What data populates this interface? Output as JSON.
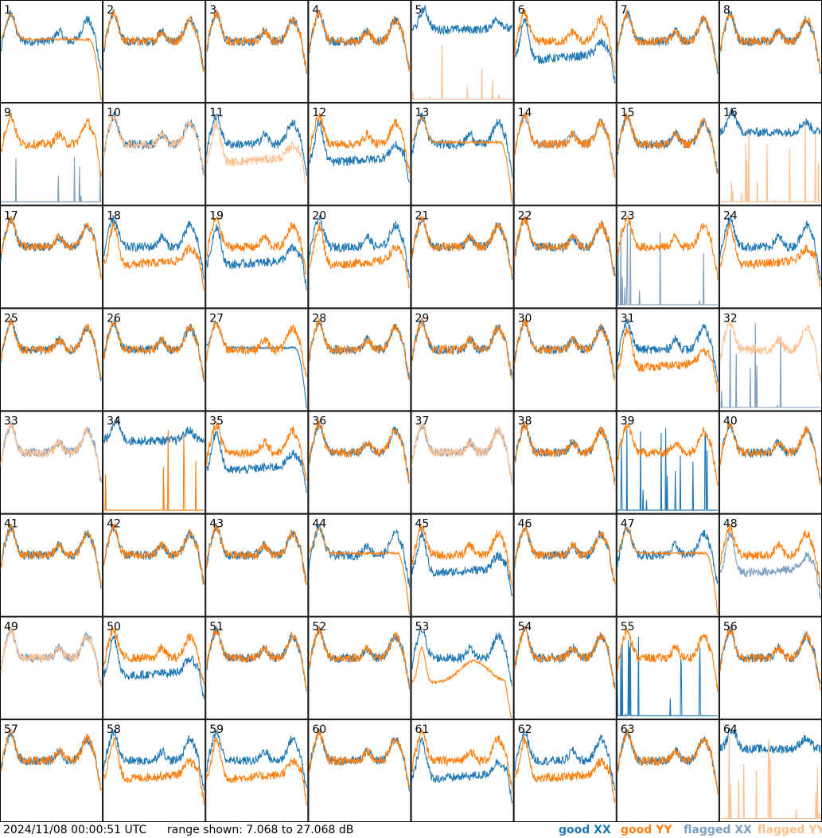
{
  "chart_data": {
    "type": "line",
    "description_units": "dB",
    "range_min_db": 7.068,
    "range_max_db": 27.068,
    "timestamp": "2024/11/08 00:00:51 UTC",
    "range_label": "range shown: 7.068 to 27.068 dB",
    "legend": {
      "good_xx": "good XX",
      "good_yy": "good YY",
      "flagged_xx": "flagged XX",
      "flagged_yy": "flagged YY"
    },
    "colors": {
      "good_xx": "#1f77b4",
      "good_yy": "#ff7f0e",
      "flagged_xx": "#7f9fbf",
      "flagged_yy": "#ffbf8f"
    },
    "panels": [
      {
        "label": "1",
        "xx": "good",
        "yy": "good",
        "xx_shape": "normal",
        "yy_shape": "smooth_drop"
      },
      {
        "label": "2",
        "xx": "good",
        "yy": "good",
        "xx_shape": "normal",
        "yy_shape": "normal"
      },
      {
        "label": "3",
        "xx": "good",
        "yy": "good",
        "xx_shape": "normal",
        "yy_shape": "normal"
      },
      {
        "label": "4",
        "xx": "good",
        "yy": "good",
        "xx_shape": "normal",
        "yy_shape": "normal"
      },
      {
        "label": "5",
        "xx": "good",
        "yy": "flagged",
        "xx_shape": "high",
        "yy_shape": "flat_spikes"
      },
      {
        "label": "6",
        "xx": "good",
        "yy": "good",
        "xx_shape": "low",
        "yy_shape": "normal"
      },
      {
        "label": "7",
        "xx": "good",
        "yy": "good",
        "xx_shape": "normal",
        "yy_shape": "normal"
      },
      {
        "label": "8",
        "xx": "good",
        "yy": "good",
        "xx_shape": "normal",
        "yy_shape": "normal"
      },
      {
        "label": "9",
        "xx": "flagged",
        "yy": "good",
        "xx_shape": "flat_spikes",
        "yy_shape": "normal"
      },
      {
        "label": "10",
        "xx": "good",
        "yy": "flagged",
        "xx_shape": "normal",
        "yy_shape": "normal"
      },
      {
        "label": "11",
        "xx": "good",
        "yy": "flagged",
        "xx_shape": "normal",
        "yy_shape": "low"
      },
      {
        "label": "12",
        "xx": "good",
        "yy": "good",
        "xx_shape": "low",
        "yy_shape": "normal"
      },
      {
        "label": "13",
        "xx": "good",
        "yy": "good",
        "xx_shape": "normal",
        "yy_shape": "smooth_drop"
      },
      {
        "label": "14",
        "xx": "flagged",
        "yy": "good",
        "xx_shape": "normal",
        "yy_shape": "normal"
      },
      {
        "label": "15",
        "xx": "good",
        "yy": "good",
        "xx_shape": "normal",
        "yy_shape": "normal"
      },
      {
        "label": "16",
        "xx": "good",
        "yy": "flagged",
        "xx_shape": "high",
        "yy_shape": "flat_spikes"
      },
      {
        "label": "17",
        "xx": "good",
        "yy": "good",
        "xx_shape": "normal",
        "yy_shape": "normal"
      },
      {
        "label": "18",
        "xx": "good",
        "yy": "good",
        "xx_shape": "normal",
        "yy_shape": "low"
      },
      {
        "label": "19",
        "xx": "good",
        "yy": "good",
        "xx_shape": "low",
        "yy_shape": "normal"
      },
      {
        "label": "20",
        "xx": "good",
        "yy": "good",
        "xx_shape": "normal",
        "yy_shape": "low"
      },
      {
        "label": "21",
        "xx": "good",
        "yy": "good",
        "xx_shape": "normal",
        "yy_shape": "normal"
      },
      {
        "label": "22",
        "xx": "good",
        "yy": "good",
        "xx_shape": "normal",
        "yy_shape": "normal"
      },
      {
        "label": "23",
        "xx": "flagged",
        "yy": "good",
        "xx_shape": "flat_spikes",
        "yy_shape": "normal"
      },
      {
        "label": "24",
        "xx": "good",
        "yy": "good",
        "xx_shape": "normal",
        "yy_shape": "low"
      },
      {
        "label": "25",
        "xx": "good",
        "yy": "good",
        "xx_shape": "normal",
        "yy_shape": "normal"
      },
      {
        "label": "26",
        "xx": "good",
        "yy": "good",
        "xx_shape": "normal",
        "yy_shape": "normal"
      },
      {
        "label": "27",
        "xx": "good",
        "yy": "good",
        "xx_shape": "smooth_drop",
        "yy_shape": "normal"
      },
      {
        "label": "28",
        "xx": "good",
        "yy": "good",
        "xx_shape": "normal",
        "yy_shape": "normal"
      },
      {
        "label": "29",
        "xx": "good",
        "yy": "good",
        "xx_shape": "normal",
        "yy_shape": "normal"
      },
      {
        "label": "30",
        "xx": "good",
        "yy": "good",
        "xx_shape": "normal",
        "yy_shape": "normal"
      },
      {
        "label": "31",
        "xx": "good",
        "yy": "good",
        "xx_shape": "normal",
        "yy_shape": "low"
      },
      {
        "label": "32",
        "xx": "flagged",
        "yy": "flagged",
        "xx_shape": "flat_spikes",
        "yy_shape": "normal"
      },
      {
        "label": "33",
        "xx": "flagged",
        "yy": "flagged",
        "xx_shape": "normal",
        "yy_shape": "normal"
      },
      {
        "label": "34",
        "xx": "good",
        "yy": "good",
        "xx_shape": "high",
        "yy_shape": "flat_spikes"
      },
      {
        "label": "35",
        "xx": "good",
        "yy": "good",
        "xx_shape": "low",
        "yy_shape": "normal"
      },
      {
        "label": "36",
        "xx": "good",
        "yy": "good",
        "xx_shape": "normal",
        "yy_shape": "normal"
      },
      {
        "label": "37",
        "xx": "flagged",
        "yy": "flagged",
        "xx_shape": "normal",
        "yy_shape": "normal"
      },
      {
        "label": "38",
        "xx": "good",
        "yy": "good",
        "xx_shape": "normal",
        "yy_shape": "normal"
      },
      {
        "label": "39",
        "xx": "good",
        "yy": "good",
        "xx_shape": "flat_spikes",
        "yy_shape": "normal"
      },
      {
        "label": "40",
        "xx": "good",
        "yy": "good",
        "xx_shape": "normal",
        "yy_shape": "normal"
      },
      {
        "label": "41",
        "xx": "good",
        "yy": "good",
        "xx_shape": "normal",
        "yy_shape": "normal"
      },
      {
        "label": "42",
        "xx": "good",
        "yy": "good",
        "xx_shape": "normal",
        "yy_shape": "normal"
      },
      {
        "label": "43",
        "xx": "good",
        "yy": "good",
        "xx_shape": "normal",
        "yy_shape": "normal"
      },
      {
        "label": "44",
        "xx": "good",
        "yy": "good",
        "xx_shape": "normal",
        "yy_shape": "smooth_drop"
      },
      {
        "label": "45",
        "xx": "good",
        "yy": "good",
        "xx_shape": "low",
        "yy_shape": "normal"
      },
      {
        "label": "46",
        "xx": "good",
        "yy": "good",
        "xx_shape": "normal",
        "yy_shape": "normal"
      },
      {
        "label": "47",
        "xx": "good",
        "yy": "good",
        "xx_shape": "normal",
        "yy_shape": "smooth_drop"
      },
      {
        "label": "48",
        "xx": "flagged",
        "yy": "good",
        "xx_shape": "low",
        "yy_shape": "normal"
      },
      {
        "label": "49",
        "xx": "flagged",
        "yy": "flagged",
        "xx_shape": "normal",
        "yy_shape": "normal"
      },
      {
        "label": "50",
        "xx": "good",
        "yy": "good",
        "xx_shape": "low",
        "yy_shape": "normal"
      },
      {
        "label": "51",
        "xx": "good",
        "yy": "good",
        "xx_shape": "normal",
        "yy_shape": "normal"
      },
      {
        "label": "52",
        "xx": "good",
        "yy": "good",
        "xx_shape": "normal",
        "yy_shape": "normal"
      },
      {
        "label": "53",
        "xx": "good",
        "yy": "good",
        "xx_shape": "normal",
        "yy_shape": "dip_hump"
      },
      {
        "label": "54",
        "xx": "good",
        "yy": "good",
        "xx_shape": "normal",
        "yy_shape": "normal"
      },
      {
        "label": "55",
        "xx": "good",
        "yy": "good",
        "xx_shape": "flat_spikes",
        "yy_shape": "normal"
      },
      {
        "label": "56",
        "xx": "good",
        "yy": "good",
        "xx_shape": "normal",
        "yy_shape": "normal"
      },
      {
        "label": "57",
        "xx": "good",
        "yy": "good",
        "xx_shape": "normal",
        "yy_shape": "normal"
      },
      {
        "label": "58",
        "xx": "good",
        "yy": "good",
        "xx_shape": "normal",
        "yy_shape": "low"
      },
      {
        "label": "59",
        "xx": "good",
        "yy": "good",
        "xx_shape": "normal",
        "yy_shape": "low"
      },
      {
        "label": "60",
        "xx": "good",
        "yy": "good",
        "xx_shape": "normal",
        "yy_shape": "normal"
      },
      {
        "label": "61",
        "xx": "good",
        "yy": "good",
        "xx_shape": "low",
        "yy_shape": "normal"
      },
      {
        "label": "62",
        "xx": "good",
        "yy": "good",
        "xx_shape": "normal",
        "yy_shape": "low"
      },
      {
        "label": "63",
        "xx": "good",
        "yy": "good",
        "xx_shape": "normal",
        "yy_shape": "normal"
      },
      {
        "label": "64",
        "xx": "good",
        "yy": "flagged",
        "xx_shape": "high",
        "yy_shape": "flat_spikes"
      }
    ]
  }
}
